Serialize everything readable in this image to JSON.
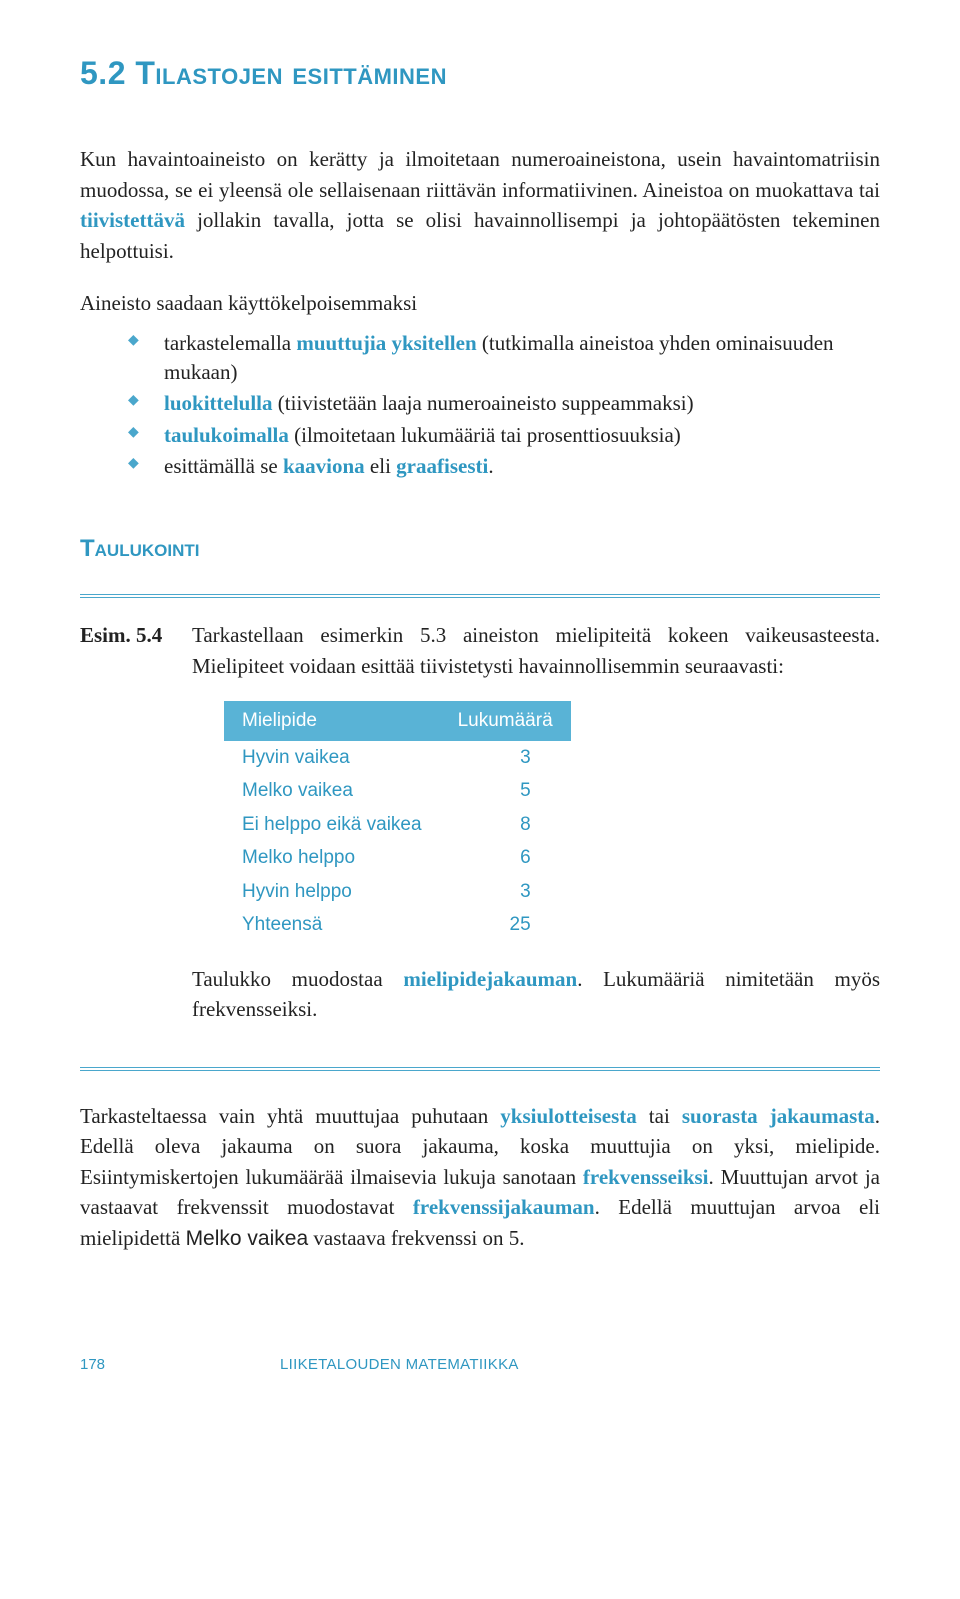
{
  "colors": {
    "accent": "#2f97c1",
    "diamond": "#4aa7cc",
    "rule": "#4aa7cc",
    "table_header_bg": "#59b3d6",
    "table_text": "#2f97c1",
    "footer": "#2f97c1"
  },
  "fonts": {
    "h1_size": 32,
    "h2_size": 24,
    "body_size": 21,
    "table_size": 19
  },
  "heading": {
    "number": "5.2",
    "title": "Tilastojen esittäminen"
  },
  "para1": {
    "t1": "Kun havaintoaineisto on kerätty ja ilmoitetaan numeroaineistona, usein havaintomatriisin muodossa, se ei yleensä ole sellaisenaan riittävän informatiivinen. Aineistoa on muokattava tai ",
    "kw1": "tiivistettävä",
    "t2": " jollakin tavalla, jotta se olisi havainnollisempi ja johtopäätösten tekeminen helpottuisi."
  },
  "para2": "Aineisto saadaan käyttökelpoisemmaksi",
  "bullets": [
    {
      "t1": "tarkastelemalla ",
      "kw": "muuttujia yksitellen",
      "t2": " (tutkimalla aineistoa yhden ominaisuuden mukaan)"
    },
    {
      "t1": "",
      "kw": "luokittelulla",
      "t2": " (tiivistetään laaja numeroaineisto suppeammaksi)"
    },
    {
      "t1": "",
      "kw": "taulukoimalla",
      "t2": " (ilmoitetaan lukumääriä tai prosenttiosuuksia)"
    },
    {
      "t1": "esittämällä se ",
      "kw": "kaaviona",
      "t2": " eli ",
      "kw2": "graafisesti",
      "t3": "."
    }
  ],
  "sub": "Taulukointi",
  "example": {
    "label": "Esim. 5.4",
    "text": "Tarkastellaan esimerkin 5.3 aineiston mielipiteitä kokeen vaikeusasteesta. Mielipiteet voidaan esittää tiivistetysti havainnollisemmin seuraavasti:"
  },
  "table": {
    "col1": "Mielipide",
    "col2": "Lukumäärä",
    "rows": [
      {
        "label": "Hyvin vaikea",
        "value": "3"
      },
      {
        "label": "Melko vaikea",
        "value": "5"
      },
      {
        "label": "Ei helppo eikä vaikea",
        "value": "8"
      },
      {
        "label": "Melko helppo",
        "value": "6"
      },
      {
        "label": "Hyvin helppo",
        "value": "3"
      },
      {
        "label": "Yhteensä",
        "value": "25"
      }
    ]
  },
  "after_table": {
    "t1": "Taulukko muodostaa ",
    "kw": "mielipidejakauman",
    "t2": ". Lukumääriä nimitetään myös frekvensseiksi."
  },
  "closing": {
    "t1": "Tarkasteltaessa vain yhtä muuttujaa puhutaan ",
    "kw1": "yksiulotteisesta",
    "t2": " tai ",
    "kw2": "suorasta jakaumasta",
    "t3": ". Edellä oleva jakauma on suora jakauma, koska muuttujia on yksi, mielipide. Esiintymiskertojen lukumäärää ilmaisevia lukuja sanotaan ",
    "kw3": "frekvensseiksi",
    "t4": ". Muuttujan arvot ja vastaavat frekvenssit muodostavat ",
    "kw4": "frekvenssijakauman",
    "t5": ". Edellä muuttujan arvoa eli mielipidettä ",
    "sans": "Melko vaikea",
    "t6": " vastaava frekvenssi on 5."
  },
  "footer": {
    "page": "178",
    "title": "LIIKETALOUDEN MATEMATIIKKA"
  }
}
